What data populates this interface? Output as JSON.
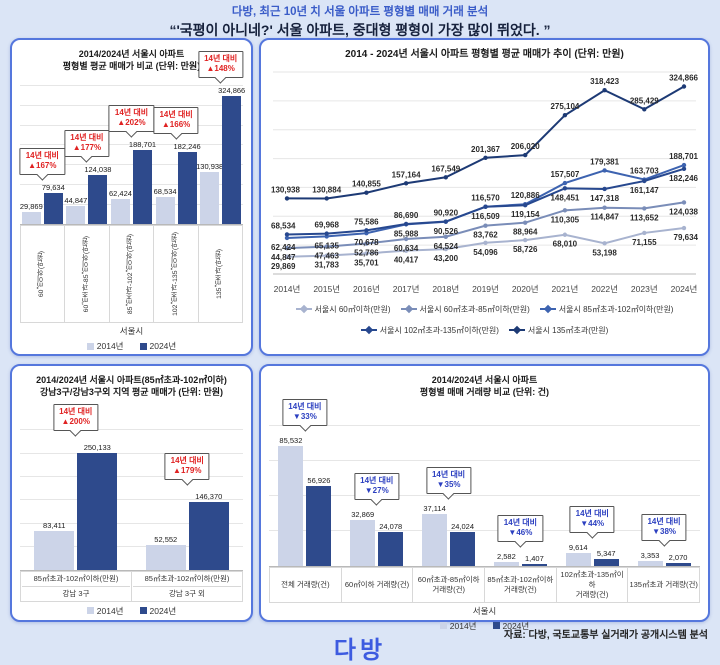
{
  "page": {
    "header": {
      "line1": "다방, 최근 10년 치 서울 아파트 평형별 매매 거래 분석",
      "line2": "“'국평이 아니네?' 서울 아파트, 중대형 평형이 가장 많이 뛰었다. ”"
    },
    "footer": {
      "logo": "다방",
      "source": "자료: 다방, 국토교통부 실거래가 공개시스템 분석"
    }
  },
  "colors": {
    "background": "#dbe5f6",
    "panel_border": "#5577dd",
    "header_blue": "#3a5cc8",
    "headline_dark": "#16213c",
    "bar_2014": "#ccd4e8",
    "bar_2024": "#2e4a8c",
    "badge_up_red": "#e02222",
    "badge_down_blue": "#2b3fc0",
    "brand_blue": "#3d5be0",
    "line_series": [
      "#a8b3cf",
      "#7a8db8",
      "#3d63b0",
      "#27488f",
      "#1d3a75"
    ]
  },
  "chart_data": [
    {
      "type": "bar",
      "title_lines": [
        "2014/2024년 서울시 아파트",
        "평형별 평균 매매가 비교 (단위: 만원)"
      ],
      "categories": [
        "60㎡이하(만원)",
        "60㎡초과-85㎡이하(만원)",
        "85㎡초과-102㎡이하(만원)",
        "102㎡초과-135㎡이하(만원)",
        "135㎡초과(만원)"
      ],
      "series": [
        {
          "name": "2014년",
          "values": [
            29869,
            44847,
            62424,
            68534,
            130938
          ]
        },
        {
          "name": "2024년",
          "values": [
            79634,
            124038,
            188701,
            182246,
            324866
          ]
        }
      ],
      "badge_prefix": "14년 대비",
      "badges": [
        "▲167%",
        "▲177%",
        "▲202%",
        "▲166%",
        "▲148%"
      ],
      "badge_dir": "up",
      "axis_group_label": "서울시",
      "ylabel": "",
      "xlabel": "",
      "ylim": [
        0,
        350000
      ],
      "grid": true,
      "legend_position": "bottom"
    },
    {
      "type": "line",
      "title_lines": [
        "2014 - 2024년 서울시 아파트 평형별 평균 매매가 추이 (단위: 만원)"
      ],
      "x": [
        "2014년",
        "2015년",
        "2016년",
        "2017년",
        "2018년",
        "2019년",
        "2020년",
        "2021년",
        "2022년",
        "2023년",
        "2024년"
      ],
      "series": [
        {
          "name": "서울시 60㎡이하(만원)",
          "label_side": "below",
          "values": [
            29869,
            31783,
            35701,
            40417,
            43200,
            54096,
            58726,
            68010,
            53198,
            71155,
            79634
          ]
        },
        {
          "name": "서울시 60㎡초과-85㎡이하(만원)",
          "label_side": "below",
          "values": [
            44847,
            47463,
            52786,
            60634,
            64524,
            83762,
            88964,
            110305,
            114847,
            113652,
            124038
          ]
        },
        {
          "name": "서울시 85㎡초과-102㎡이하(만원)",
          "label_side": "pair",
          "pair_with": 3,
          "values": [
            62424,
            65135,
            70678,
            85988,
            90526,
            116570,
            120886,
            157507,
            179381,
            163703,
            188701
          ]
        },
        {
          "name": "서울시 102㎡초과-135㎡이하(만원)",
          "label_side": "pair",
          "pair_with": 2,
          "values": [
            68534,
            69968,
            75586,
            86690,
            90920,
            116509,
            119154,
            148451,
            147318,
            161147,
            182246
          ]
        },
        {
          "name": "서울시 135㎡초과(만원)",
          "label_side": "above",
          "values": [
            130938,
            130884,
            140855,
            157164,
            167549,
            201367,
            206020,
            275104,
            318423,
            285429,
            324866
          ]
        }
      ],
      "ylabel": "",
      "xlabel": "",
      "ylim": [
        0,
        350000
      ],
      "grid": true,
      "legend_position": "bottom"
    },
    {
      "type": "bar",
      "title_lines": [
        "2014/2024년 서울시 아파트(85㎡초과-102㎡이하)",
        "강남3구/강남3구외 지역 평균 매매가 (단위: 만원)"
      ],
      "categories": [
        [
          "85㎡초과-102㎡이하(만원)",
          "강남 3구"
        ],
        [
          "85㎡초과-102㎡이하(만원)",
          "강남 3구 외"
        ]
      ],
      "series": [
        {
          "name": "2014년",
          "values": [
            83411,
            52552
          ]
        },
        {
          "name": "2024년",
          "values": [
            250133,
            146370
          ]
        }
      ],
      "badge_prefix": "14년 대비",
      "badges": [
        "▲200%",
        "▲179%"
      ],
      "badge_dir": "up",
      "multi_level": true,
      "ylabel": "",
      "xlabel": "",
      "ylim": [
        0,
        300000
      ],
      "grid": true,
      "legend_position": "bottom"
    },
    {
      "type": "bar",
      "title_lines": [
        "2014/2024년 서울시 아파트",
        "평형별 매매 거래량 비교 (단위: 건)"
      ],
      "categories": [
        [
          "전체 거래량(건)"
        ],
        [
          "60㎡이하 거래량(건)"
        ],
        [
          "60㎡초과-85㎡이하",
          "거래량(건)"
        ],
        [
          "85㎡초과-102㎡이하",
          "거래량(건)"
        ],
        [
          "102㎡초과-135㎡이하",
          "거래량(건)"
        ],
        [
          "135㎡초과 거래량(건)"
        ]
      ],
      "series": [
        {
          "name": "2014년",
          "values": [
            85532,
            32869,
            37114,
            2582,
            9614,
            3353
          ]
        },
        {
          "name": "2024년",
          "values": [
            56926,
            24078,
            24024,
            1407,
            5347,
            2070
          ]
        }
      ],
      "badge_prefix": "14년 대비",
      "badges": [
        "▼33%",
        "▼27%",
        "▼35%",
        "▼46%",
        "▼44%",
        "▼38%"
      ],
      "badge_dir": "down",
      "axis_group_label": "서울시",
      "ylabel": "",
      "xlabel": "",
      "ylim": [
        0,
        100000
      ],
      "grid": true,
      "legend_position": "bottom"
    }
  ]
}
